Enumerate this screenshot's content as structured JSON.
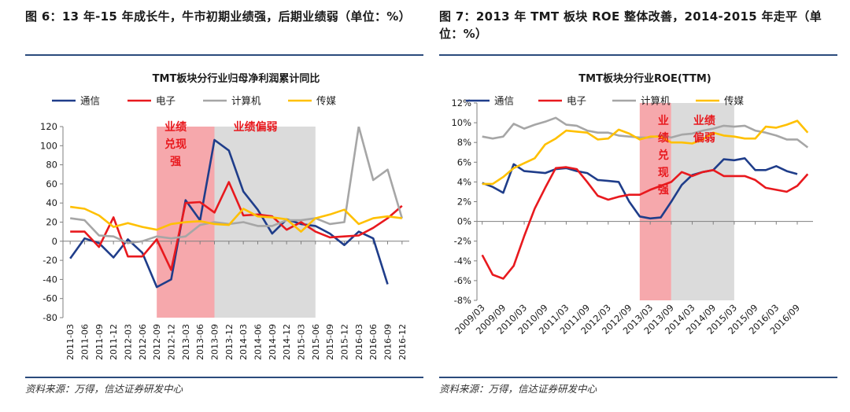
{
  "figures": [
    {
      "title": "图 6：13 年-15 年成长牛，牛市初期业绩强，后期业绩弱（单位：%）",
      "source": "资料来源：万得，信达证券研发中心"
    },
    {
      "title": "图 7：2013 年 TMT 板块 ROE 整体改善，2014-2015 年走平（单位：%）",
      "source": "资料来源：万得，信达证券研发中心"
    }
  ],
  "chart_data": [
    {
      "type": "line",
      "title": "TMT板块分行业归母净利润累计同比",
      "xlabel": "",
      "ylabel": "",
      "ylim": [
        -80,
        120
      ],
      "yticks": [
        "-80",
        "-60",
        "-40",
        "-20",
        "0",
        "20",
        "40",
        "60",
        "80",
        "100",
        "120"
      ],
      "categories": [
        "2011-03",
        "2011-06",
        "2011-09",
        "2011-12",
        "2012-03",
        "2012-06",
        "2012-09",
        "2012-12",
        "2013-03",
        "2013-06",
        "2013-09",
        "2013-12",
        "2014-03",
        "2014-06",
        "2014-09",
        "2014-12",
        "2015-03",
        "2015-06",
        "2015-09",
        "2015-12",
        "2016-03",
        "2016-06",
        "2016-09",
        "2016-12"
      ],
      "legend": "top",
      "series": [
        {
          "name": "通信",
          "color": "#1f3d8a",
          "values": [
            -18,
            3,
            -2,
            -17,
            2,
            -12,
            -48,
            -40,
            43,
            22,
            106,
            95,
            52,
            33,
            8,
            23,
            18,
            16,
            8,
            -4,
            10,
            3,
            -45,
            null
          ]
        },
        {
          "name": "电子",
          "color": "#e8191e",
          "values": [
            10,
            10,
            -6,
            25,
            -16,
            -16,
            2,
            -30,
            40,
            41,
            30,
            62,
            27,
            28,
            26,
            12,
            20,
            10,
            4,
            5,
            6,
            14,
            24,
            37
          ]
        },
        {
          "name": "计算机",
          "color": "#a6a6a6",
          "values": [
            24,
            22,
            6,
            5,
            -2,
            0,
            5,
            3,
            5,
            17,
            20,
            18,
            20,
            16,
            16,
            22,
            22,
            24,
            18,
            20,
            120,
            64,
            75,
            24
          ]
        },
        {
          "name": "传媒",
          "color": "#ffc000",
          "values": [
            36,
            34,
            27,
            15,
            19,
            15,
            12,
            18,
            20,
            21,
            18,
            17,
            34,
            26,
            25,
            23,
            10,
            24,
            28,
            33,
            18,
            24,
            26,
            24
          ]
        }
      ],
      "bands": [
        {
          "label": "业绩兑现强",
          "from": "2012-09",
          "to": "2013-09",
          "color": "#f5a3a8"
        },
        {
          "label": "业绩偏弱",
          "from": "2013-09",
          "to": "2015-06",
          "color": "#d9d9d9"
        }
      ]
    },
    {
      "type": "line",
      "title": "TMT板块分行业ROE(TTM)",
      "xlabel": "",
      "ylabel": "",
      "ylim": [
        -8,
        12
      ],
      "yticks": [
        "-8%",
        "-6%",
        "-4%",
        "-2%",
        "0%",
        "2%",
        "4%",
        "6%",
        "8%",
        "10%",
        "12%"
      ],
      "categories": [
        "2009/03",
        "2009/06",
        "2009/09",
        "2009/12",
        "2010/03",
        "2010/06",
        "2010/09",
        "2010/12",
        "2011/03",
        "2011/06",
        "2011/09",
        "2011/12",
        "2012/03",
        "2012/06",
        "2012/09",
        "2012/12",
        "2013/03",
        "2013/06",
        "2013/09",
        "2013/12",
        "2014/03",
        "2014/06",
        "2014/09",
        "2014/12",
        "2015/03",
        "2015/06",
        "2015/09",
        "2015/12",
        "2016/03",
        "2016/06",
        "2016/09",
        "2016/12"
      ],
      "xticks": [
        "2009/03",
        "2009/09",
        "2010/03",
        "2010/09",
        "2011/03",
        "2011/09",
        "2012/03",
        "2012/09",
        "2013/03",
        "2013/09",
        "2014/03",
        "2014/09",
        "2015/03",
        "2015/09",
        "2016/03",
        "2016/09"
      ],
      "legend": "top",
      "series": [
        {
          "name": "通信",
          "color": "#1f3d8a",
          "values": [
            3.9,
            3.5,
            2.9,
            5.8,
            5.1,
            5.0,
            4.9,
            5.3,
            5.4,
            5.1,
            4.9,
            4.2,
            4.1,
            4.0,
            2.0,
            0.5,
            0.3,
            0.4,
            2.0,
            3.7,
            4.7,
            5.0,
            5.2,
            6.3,
            6.2,
            6.4,
            5.2,
            5.2,
            5.6,
            5.1,
            4.8,
            null
          ]
        },
        {
          "name": "电子",
          "color": "#e8191e",
          "values": [
            -3.4,
            -5.4,
            -5.8,
            -4.5,
            -1.5,
            1.3,
            3.4,
            5.4,
            5.5,
            5.3,
            4.0,
            2.6,
            2.2,
            2.5,
            2.7,
            2.7,
            3.2,
            3.6,
            4.0,
            5.0,
            4.6,
            5.0,
            5.2,
            4.6,
            4.6,
            4.6,
            4.2,
            3.4,
            3.2,
            3.0,
            3.6,
            4.8
          ]
        },
        {
          "name": "计算机",
          "color": "#a6a6a6",
          "values": [
            8.6,
            8.4,
            8.6,
            9.9,
            9.4,
            9.8,
            10.1,
            10.5,
            9.8,
            9.7,
            9.2,
            9.0,
            9.0,
            8.7,
            8.6,
            8.5,
            8.5,
            8.7,
            8.5,
            8.8,
            8.9,
            9.2,
            9.4,
            9.7,
            9.6,
            9.7,
            9.2,
            9.0,
            8.7,
            8.3,
            8.3,
            7.5
          ]
        },
        {
          "name": "传媒",
          "color": "#ffc000",
          "values": [
            3.8,
            3.8,
            4.5,
            5.4,
            5.9,
            6.4,
            7.8,
            8.4,
            9.2,
            9.1,
            9.0,
            8.3,
            8.4,
            9.3,
            8.9,
            8.3,
            8.6,
            8.6,
            8.0,
            8.0,
            7.9,
            8.3,
            9.0,
            8.7,
            8.6,
            8.4,
            8.4,
            9.6,
            9.5,
            9.8,
            10.2,
            9.0
          ]
        }
      ],
      "bands": [
        {
          "label": "业绩兑现强",
          "from": "2012/12",
          "to": "2013/09",
          "color": "#f5a3a8"
        },
        {
          "label": "业绩偏弱",
          "from": "2013/09",
          "to": "2015/03",
          "color": "#d9d9d9"
        }
      ]
    }
  ]
}
